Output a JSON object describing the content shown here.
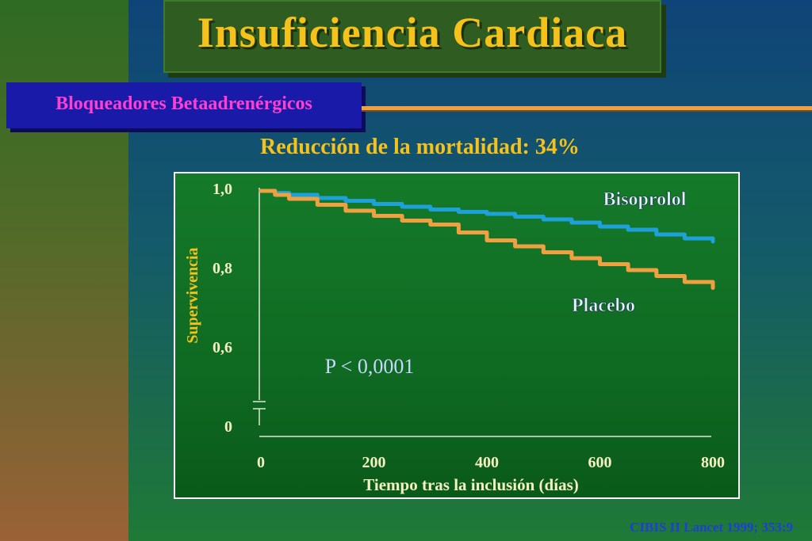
{
  "header": {
    "title": "Insuficiencia  Cardiaca"
  },
  "section": {
    "label": "Bloqueadores  Betaadrenérgicos"
  },
  "headline": "Reducción de la mortalidad: 34%",
  "footer": {
    "citation": "CIBIS II Lancet 1999; 353:9"
  },
  "colors": {
    "title": "#f5c21b",
    "subtitle": "#ff3fd0",
    "bisoprolol": "#1ea0d8",
    "placebo": "#f0a040",
    "text": "#f5f0c0"
  },
  "chart_data": {
    "type": "line",
    "title": "",
    "xlabel": "Tiempo tras la inclusión (días)",
    "ylabel": "Supervivencia",
    "x_ticks": [
      "0",
      "200",
      "400",
      "600",
      "800"
    ],
    "y_ticks": [
      "1,0",
      "0,8",
      "0,6",
      "0"
    ],
    "xlim": [
      0,
      800
    ],
    "ylim_display": [
      0.4,
      1.0
    ],
    "axis_break": true,
    "annotation": "P < 0,0001",
    "series": [
      {
        "name": "Bisoprolol",
        "color": "#1ea0d8",
        "x": [
          0,
          25,
          50,
          100,
          150,
          200,
          250,
          300,
          350,
          400,
          450,
          500,
          550,
          600,
          650,
          700,
          750,
          800
        ],
        "y": [
          1.0,
          0.995,
          0.99,
          0.982,
          0.975,
          0.967,
          0.96,
          0.953,
          0.947,
          0.942,
          0.935,
          0.928,
          0.92,
          0.91,
          0.902,
          0.89,
          0.88,
          0.872
        ]
      },
      {
        "name": "Placebo",
        "color": "#f0a040",
        "x": [
          0,
          25,
          50,
          100,
          150,
          200,
          250,
          300,
          350,
          400,
          450,
          500,
          550,
          600,
          650,
          700,
          750,
          800
        ],
        "y": [
          1.0,
          0.99,
          0.98,
          0.965,
          0.95,
          0.937,
          0.925,
          0.915,
          0.895,
          0.875,
          0.86,
          0.845,
          0.83,
          0.815,
          0.8,
          0.785,
          0.77,
          0.755
        ]
      }
    ]
  }
}
